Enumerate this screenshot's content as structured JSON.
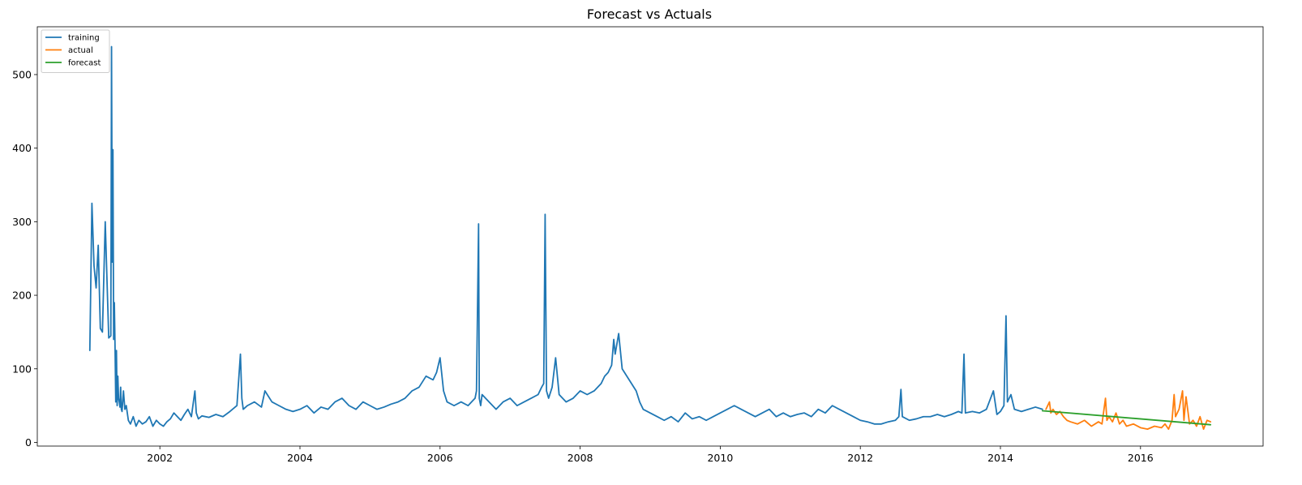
{
  "chart_data": {
    "type": "line",
    "title": "Forecast vs Actuals",
    "xlabel": "",
    "ylabel": "",
    "xlim": [
      2000.25,
      2017.75
    ],
    "ylim": [
      -5,
      565
    ],
    "grid": false,
    "legend_position": "top-left",
    "x_ticks": [
      2002,
      2004,
      2006,
      2008,
      2010,
      2012,
      2014,
      2016
    ],
    "x_tick_labels": [
      "2002",
      "2004",
      "2006",
      "2008",
      "2010",
      "2012",
      "2014",
      "2016"
    ],
    "y_ticks": [
      0,
      100,
      200,
      300,
      400,
      500
    ],
    "y_tick_labels": [
      "0",
      "100",
      "200",
      "300",
      "400",
      "500"
    ],
    "series": [
      {
        "name": "training",
        "color": "#1f77b4",
        "x": [
          2001.0,
          2001.03,
          2001.06,
          2001.09,
          2001.12,
          2001.15,
          2001.18,
          2001.22,
          2001.27,
          2001.3,
          2001.31,
          2001.32,
          2001.33,
          2001.34,
          2001.35,
          2001.36,
          2001.37,
          2001.38,
          2001.39,
          2001.4,
          2001.41,
          2001.42,
          2001.43,
          2001.44,
          2001.45,
          2001.46,
          2001.48,
          2001.5,
          2001.52,
          2001.55,
          2001.58,
          2001.62,
          2001.66,
          2001.7,
          2001.75,
          2001.8,
          2001.85,
          2001.9,
          2001.95,
          2002.0,
          2002.05,
          2002.1,
          2002.15,
          2002.2,
          2002.25,
          2002.3,
          2002.35,
          2002.4,
          2002.45,
          2002.5,
          2002.52,
          2002.55,
          2002.6,
          2002.7,
          2002.8,
          2002.9,
          2003.0,
          2003.1,
          2003.15,
          2003.17,
          2003.19,
          2003.25,
          2003.35,
          2003.45,
          2003.5,
          2003.6,
          2003.7,
          2003.8,
          2003.9,
          2004.0,
          2004.1,
          2004.2,
          2004.3,
          2004.4,
          2004.5,
          2004.6,
          2004.7,
          2004.8,
          2004.9,
          2005.0,
          2005.1,
          2005.2,
          2005.3,
          2005.4,
          2005.5,
          2005.6,
          2005.7,
          2005.8,
          2005.9,
          2005.95,
          2006.0,
          2006.05,
          2006.1,
          2006.2,
          2006.3,
          2006.4,
          2006.5,
          2006.52,
          2006.55,
          2006.56,
          2006.58,
          2006.6,
          2006.7,
          2006.8,
          2006.9,
          2007.0,
          2007.1,
          2007.2,
          2007.3,
          2007.4,
          2007.45,
          2007.48,
          2007.5,
          2007.52,
          2007.55,
          2007.6,
          2007.65,
          2007.7,
          2007.8,
          2007.9,
          2008.0,
          2008.1,
          2008.2,
          2008.3,
          2008.35,
          2008.4,
          2008.45,
          2008.48,
          2008.5,
          2008.55,
          2008.6,
          2008.7,
          2008.8,
          2008.85,
          2008.9,
          2009.0,
          2009.1,
          2009.2,
          2009.3,
          2009.4,
          2009.5,
          2009.6,
          2009.7,
          2009.8,
          2009.9,
          2010.0,
          2010.1,
          2010.2,
          2010.3,
          2010.4,
          2010.5,
          2010.6,
          2010.7,
          2010.8,
          2010.9,
          2011.0,
          2011.1,
          2011.2,
          2011.3,
          2011.4,
          2011.5,
          2011.6,
          2011.7,
          2011.8,
          2011.9,
          2012.0,
          2012.1,
          2012.2,
          2012.3,
          2012.4,
          2012.5,
          2012.55,
          2012.58,
          2012.6,
          2012.7,
          2012.8,
          2012.9,
          2013.0,
          2013.1,
          2013.2,
          2013.3,
          2013.4,
          2013.45,
          2013.48,
          2013.5,
          2013.6,
          2013.7,
          2013.8,
          2013.9,
          2013.95,
          2014.0,
          2014.05,
          2014.08,
          2014.1,
          2014.15,
          2014.2,
          2014.3,
          2014.4,
          2014.5,
          2014.6
        ],
        "values": [
          125,
          325,
          240,
          210,
          268,
          155,
          150,
          300,
          142,
          145,
          538,
          245,
          398,
          140,
          190,
          130,
          55,
          125,
          50,
          90,
          60,
          55,
          48,
          75,
          45,
          42,
          70,
          45,
          50,
          30,
          25,
          35,
          22,
          30,
          25,
          28,
          35,
          22,
          30,
          25,
          22,
          28,
          32,
          40,
          35,
          30,
          38,
          45,
          35,
          70,
          40,
          32,
          36,
          34,
          38,
          35,
          42,
          50,
          120,
          60,
          45,
          50,
          55,
          48,
          70,
          55,
          50,
          45,
          42,
          45,
          50,
          40,
          48,
          45,
          55,
          60,
          50,
          45,
          55,
          50,
          45,
          48,
          52,
          55,
          60,
          70,
          75,
          90,
          85,
          95,
          115,
          70,
          55,
          50,
          55,
          50,
          60,
          70,
          297,
          60,
          50,
          65,
          55,
          45,
          55,
          60,
          50,
          55,
          60,
          65,
          75,
          80,
          310,
          70,
          60,
          75,
          115,
          65,
          55,
          60,
          70,
          65,
          70,
          80,
          90,
          95,
          105,
          140,
          120,
          148,
          100,
          85,
          70,
          55,
          45,
          40,
          35,
          30,
          35,
          28,
          40,
          32,
          35,
          30,
          35,
          40,
          45,
          50,
          45,
          40,
          35,
          40,
          45,
          35,
          40,
          35,
          38,
          40,
          35,
          45,
          40,
          50,
          45,
          40,
          35,
          30,
          28,
          25,
          25,
          28,
          30,
          35,
          72,
          35,
          30,
          32,
          35,
          35,
          38,
          35,
          38,
          42,
          40,
          120,
          40,
          42,
          40,
          45,
          70,
          38,
          42,
          50,
          172,
          55,
          65,
          45,
          42,
          45,
          48,
          45
        ]
      },
      {
        "name": "actual",
        "color": "#ff7f0e",
        "x": [
          2014.65,
          2014.7,
          2014.72,
          2014.75,
          2014.8,
          2014.85,
          2014.9,
          2014.95,
          2015.0,
          2015.1,
          2015.2,
          2015.3,
          2015.4,
          2015.45,
          2015.5,
          2015.52,
          2015.55,
          2015.6,
          2015.65,
          2015.7,
          2015.75,
          2015.8,
          2015.9,
          2016.0,
          2016.1,
          2016.2,
          2016.3,
          2016.35,
          2016.4,
          2016.45,
          2016.48,
          2016.5,
          2016.55,
          2016.6,
          2016.62,
          2016.65,
          2016.68,
          2016.7,
          2016.75,
          2016.8,
          2016.85,
          2016.9,
          2016.95,
          2017.0
        ],
        "values": [
          45,
          55,
          40,
          45,
          38,
          42,
          35,
          30,
          28,
          25,
          30,
          22,
          28,
          25,
          60,
          30,
          35,
          28,
          40,
          25,
          30,
          22,
          25,
          20,
          18,
          22,
          20,
          25,
          18,
          30,
          65,
          35,
          45,
          70,
          30,
          62,
          40,
          25,
          30,
          22,
          35,
          18,
          30,
          28
        ]
      },
      {
        "name": "forecast",
        "color": "#2ca02c",
        "x": [
          2014.6,
          2017.0
        ],
        "values": [
          43,
          24
        ]
      }
    ]
  }
}
